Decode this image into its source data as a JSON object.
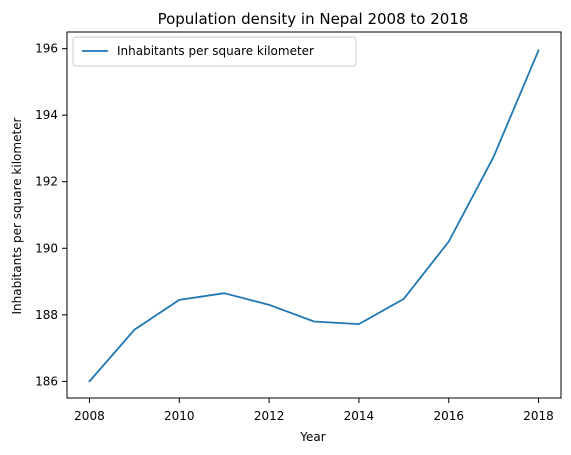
{
  "chart_data": {
    "type": "line",
    "title": "Population density in Nepal 2008 to 2018",
    "xlabel": "Year",
    "ylabel": "Inhabitants per square kilometer",
    "x": [
      2008,
      2009,
      2010,
      2011,
      2012,
      2013,
      2014,
      2015,
      2016,
      2017,
      2018
    ],
    "series": [
      {
        "name": "Inhabitants per square kilometer",
        "color": "#1f77b4",
        "values": [
          186.0,
          187.55,
          188.45,
          188.65,
          188.3,
          187.8,
          187.72,
          188.48,
          190.2,
          192.75,
          195.95
        ]
      }
    ],
    "xlim": [
      2007.5,
      2018.5
    ],
    "ylim": [
      185.5,
      196.5
    ],
    "xticks": [
      2008,
      2010,
      2012,
      2014,
      2016,
      2018
    ],
    "yticks": [
      186,
      188,
      190,
      192,
      194,
      196
    ],
    "legend_position": "upper-left",
    "grid": false
  }
}
